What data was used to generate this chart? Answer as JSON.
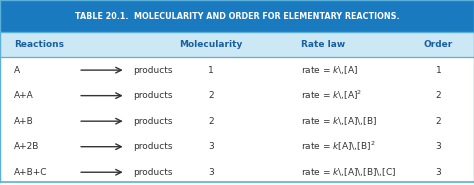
{
  "title": "TABLE 20.1.  MOLECULARITY AND ORDER FOR ELEMENTARY REACTIONS.",
  "title_bg": "#1a7abf",
  "title_color": "#ffffff",
  "header_bg": "#cde8f5",
  "header_color": "#1a5fa0",
  "row_bg": "#ffffff",
  "border_color": "#5ab0d8",
  "text_color": "#333333",
  "col_headers": [
    "Reactions",
    "Molecularity",
    "Rate law",
    "Order"
  ],
  "reactions_col1": [
    "A",
    "A+A",
    "A+B",
    "A+2B",
    "A+B+C"
  ],
  "molecularity": [
    "1",
    "2",
    "2",
    "3",
    "3"
  ],
  "rate_law_text": [
    "rate = $k$\\,[A]",
    "rate = $k$\\,[A]$^{2}$",
    "rate = $k$\\,[A]\\,[B]",
    "rate = $k$[A]\\,[B]$^{2}$",
    "rate = $k$\\,[A]\\,[B]\\,[C]"
  ],
  "order": [
    "1",
    "2",
    "2",
    "3",
    "3"
  ],
  "figsize": [
    4.74,
    1.85
  ],
  "dpi": 100
}
